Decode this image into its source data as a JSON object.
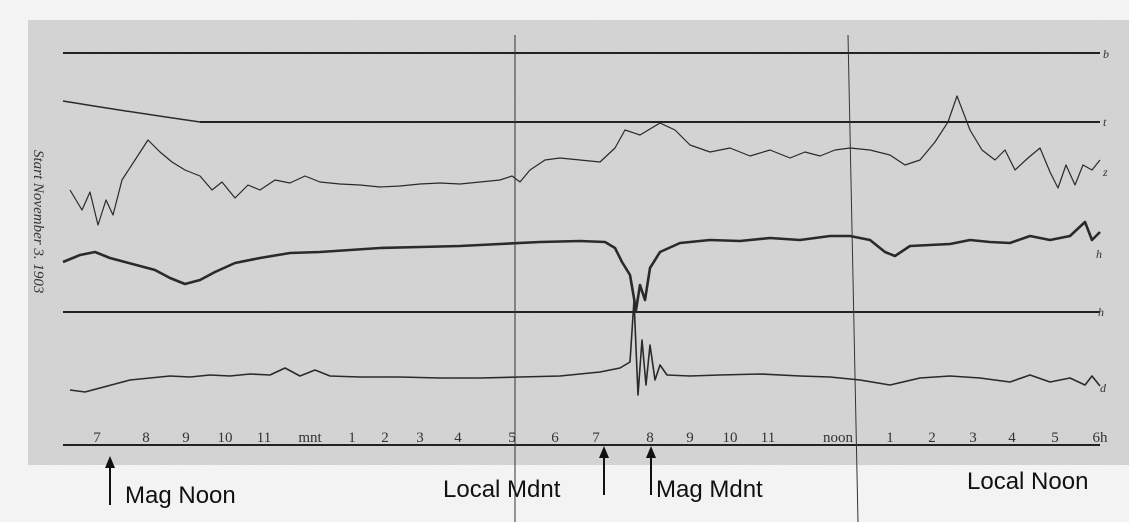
{
  "record": {
    "start_label": "Start November 3. 1903",
    "trace_labels": [
      "b",
      "t",
      "z",
      "h",
      "h",
      "d"
    ],
    "hour_labels": [
      "7",
      "8",
      "9",
      "10",
      "11",
      "mnt",
      "1",
      "2",
      "3",
      "4",
      "5",
      "6",
      "7",
      "8",
      "9",
      "10",
      "11",
      "noon",
      "1",
      "2",
      "3",
      "4",
      "5",
      "6h"
    ]
  },
  "annotations": [
    "Mag Noon",
    "Local Mdnt",
    "Mag Mdnt",
    "Local Noon"
  ]
}
